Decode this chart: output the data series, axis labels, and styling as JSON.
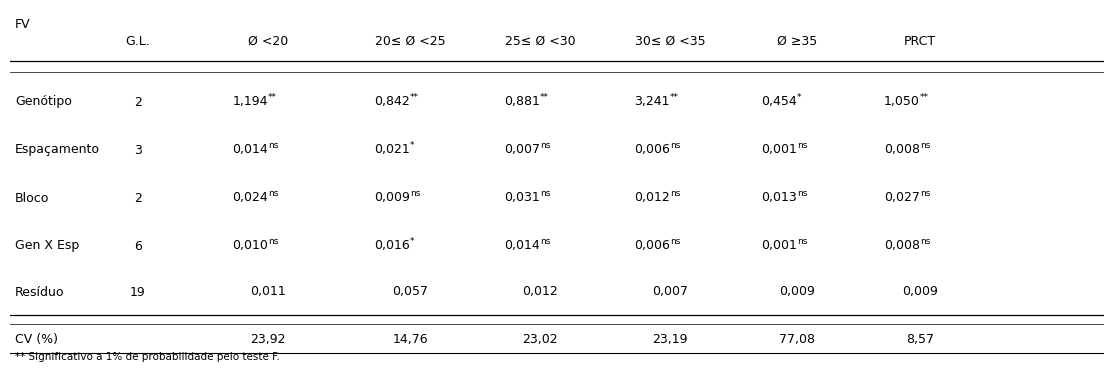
{
  "fv_label": "FV",
  "columns": [
    "G.L.",
    "Ø <20",
    "20≤ Ø <25",
    "25≤ Ø <30",
    "30≤ Ø <35",
    "Ø ≥35",
    "PRCT"
  ],
  "rows": [
    {
      "name": "Genótipo",
      "gl": "2",
      "base_values": [
        "1,194",
        "0,842",
        "0,881",
        "3,241",
        "0,454",
        "1,050"
      ],
      "superscripts": [
        "**",
        "**",
        "**",
        "**",
        "*",
        "**"
      ]
    },
    {
      "name": "Espaçamento",
      "gl": "3",
      "base_values": [
        "0,014",
        "0,021",
        "0,007",
        "0,006",
        "0,001",
        "0,008"
      ],
      "superscripts": [
        "ns",
        "*",
        "ns",
        "ns",
        "ns",
        "ns"
      ]
    },
    {
      "name": "Bloco",
      "gl": "2",
      "base_values": [
        "0,024",
        "0,009",
        "0,031",
        "0,012",
        "0,013",
        "0,027"
      ],
      "superscripts": [
        "ns",
        "ns",
        "ns",
        "ns",
        "ns",
        "ns"
      ]
    },
    {
      "name": "Gen X Esp",
      "gl": "6",
      "base_values": [
        "0,010",
        "0,016",
        "0,014",
        "0,006",
        "0,001",
        "0,008"
      ],
      "superscripts": [
        "ns",
        "*",
        "ns",
        "ns",
        "ns",
        "ns"
      ]
    },
    {
      "name": "Resíduo",
      "gl": "19",
      "base_values": [
        "0,011",
        "0,057",
        "0,012",
        "0,007",
        "0,009",
        "0,009"
      ],
      "superscripts": [
        "",
        "",
        "",
        "",
        "",
        ""
      ]
    }
  ],
  "cv_row": {
    "name": "CV (%)",
    "values": [
      "23,92",
      "14,76",
      "23,02",
      "23,19",
      "77,08",
      "8,57"
    ]
  },
  "footnote": "** Significativo a 1% de probabilidade pelo teste F.",
  "bg_color": "#ffffff",
  "text_color": "#000000"
}
